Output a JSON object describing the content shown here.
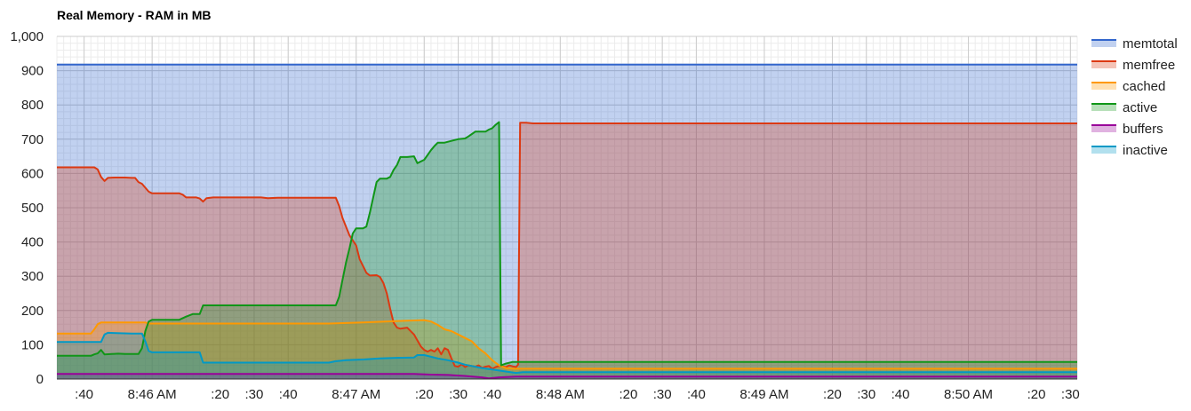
{
  "chart_data": {
    "type": "area",
    "title": "Real Memory - RAM in MB",
    "xlabel": "",
    "ylabel": "",
    "ylim": [
      0,
      1000
    ],
    "xlim": [
      30,
      330
    ],
    "x_unit": "seconds after 8:45:30",
    "y_ticks": [
      0,
      100,
      200,
      300,
      400,
      500,
      600,
      700,
      800,
      900,
      1000
    ],
    "y_tick_labels": [
      "0",
      "100",
      "200",
      "300",
      "400",
      "500",
      "600",
      "700",
      "800",
      "900",
      "1,000"
    ],
    "x_ticks": [
      {
        "t": 38,
        "label": ":40"
      },
      {
        "t": 58,
        "label": "8:46 AM"
      },
      {
        "t": 78,
        "label": ":20"
      },
      {
        "t": 88,
        "label": ":30"
      },
      {
        "t": 98,
        "label": ":40"
      },
      {
        "t": 118,
        "label": "8:47 AM"
      },
      {
        "t": 138,
        "label": ":20"
      },
      {
        "t": 148,
        "label": ":30"
      },
      {
        "t": 158,
        "label": ":40"
      },
      {
        "t": 178,
        "label": "8:48 AM"
      },
      {
        "t": 198,
        "label": ":20"
      },
      {
        "t": 208,
        "label": ":30"
      },
      {
        "t": 218,
        "label": ":40"
      },
      {
        "t": 238,
        "label": "8:49 AM"
      },
      {
        "t": 258,
        "label": ":20"
      },
      {
        "t": 268,
        "label": ":30"
      },
      {
        "t": 278,
        "label": ":40"
      },
      {
        "t": 298,
        "label": "8:50 AM"
      },
      {
        "t": 318,
        "label": ":20"
      },
      {
        "t": 328,
        "label": ":30"
      }
    ],
    "grid": true,
    "legend_position": "right",
    "series": [
      {
        "name": "memtotal",
        "color": "#3366cc",
        "points": [
          [
            30,
            918
          ],
          [
            330,
            918
          ]
        ]
      },
      {
        "name": "memfree",
        "color": "#dc3912",
        "points": [
          [
            30,
            618
          ],
          [
            41,
            618
          ],
          [
            42,
            612
          ],
          [
            43,
            590
          ],
          [
            44,
            578
          ],
          [
            45,
            587
          ],
          [
            47,
            588
          ],
          [
            50,
            588
          ],
          [
            52,
            587
          ],
          [
            53,
            587
          ],
          [
            54,
            575
          ],
          [
            55,
            570
          ],
          [
            57,
            547
          ],
          [
            58,
            542
          ],
          [
            59,
            542
          ],
          [
            63,
            542
          ],
          [
            66,
            542
          ],
          [
            67,
            538
          ],
          [
            68,
            530
          ],
          [
            71,
            530
          ],
          [
            72,
            527
          ],
          [
            73,
            518
          ],
          [
            74,
            528
          ],
          [
            76,
            530
          ],
          [
            85,
            530
          ],
          [
            90,
            530
          ],
          [
            92,
            528
          ],
          [
            95,
            529
          ],
          [
            100,
            529
          ],
          [
            110,
            529
          ],
          [
            112,
            529
          ],
          [
            113,
            505
          ],
          [
            114,
            470
          ],
          [
            116,
            420
          ],
          [
            118,
            390
          ],
          [
            119,
            350
          ],
          [
            120,
            330
          ],
          [
            121,
            310
          ],
          [
            122,
            302
          ],
          [
            124,
            303
          ],
          [
            125,
            298
          ],
          [
            126,
            280
          ],
          [
            127,
            250
          ],
          [
            128,
            205
          ],
          [
            129,
            165
          ],
          [
            130,
            150
          ],
          [
            131,
            147
          ],
          [
            133,
            150
          ],
          [
            135,
            130
          ],
          [
            137,
            95
          ],
          [
            138,
            85
          ],
          [
            139,
            80
          ],
          [
            140,
            85
          ],
          [
            141,
            80
          ],
          [
            142,
            90
          ],
          [
            143,
            72
          ],
          [
            144,
            90
          ],
          [
            145,
            85
          ],
          [
            146,
            60
          ],
          [
            147,
            38
          ],
          [
            148,
            36
          ],
          [
            149,
            43
          ],
          [
            150,
            35
          ],
          [
            151,
            40
          ],
          [
            152,
            38
          ],
          [
            153,
            36
          ],
          [
            154,
            40
          ],
          [
            155,
            33
          ],
          [
            156,
            36
          ],
          [
            157,
            38
          ],
          [
            158,
            30
          ],
          [
            159,
            35
          ],
          [
            160,
            38
          ],
          [
            161,
            37
          ],
          [
            162,
            35
          ],
          [
            163,
            40
          ],
          [
            164,
            37
          ],
          [
            165,
            35
          ],
          [
            165.6,
            42
          ],
          [
            166.2,
            748
          ],
          [
            168,
            748
          ],
          [
            170,
            746
          ],
          [
            330,
            746
          ]
        ]
      },
      {
        "name": "cached",
        "color": "#ff9900",
        "points": [
          [
            30,
            133
          ],
          [
            40,
            133
          ],
          [
            41,
            145
          ],
          [
            42,
            160
          ],
          [
            43,
            165
          ],
          [
            56,
            165
          ],
          [
            57,
            162
          ],
          [
            58,
            162
          ],
          [
            110,
            162
          ],
          [
            120,
            165
          ],
          [
            132,
            170
          ],
          [
            138,
            172
          ],
          [
            140,
            168
          ],
          [
            142,
            158
          ],
          [
            144,
            145
          ],
          [
            146,
            140
          ],
          [
            148,
            130
          ],
          [
            150,
            120
          ],
          [
            152,
            110
          ],
          [
            154,
            90
          ],
          [
            156,
            75
          ],
          [
            158,
            55
          ],
          [
            160,
            40
          ],
          [
            162,
            32
          ],
          [
            164,
            30
          ],
          [
            330,
            30
          ]
        ]
      },
      {
        "name": "active",
        "color": "#109618",
        "points": [
          [
            30,
            68
          ],
          [
            40,
            68
          ],
          [
            41,
            72
          ],
          [
            42,
            75
          ],
          [
            43,
            85
          ],
          [
            44,
            72
          ],
          [
            48,
            74
          ],
          [
            50,
            73
          ],
          [
            54,
            73
          ],
          [
            55,
            90
          ],
          [
            56,
            140
          ],
          [
            57,
            168
          ],
          [
            58,
            173
          ],
          [
            66,
            173
          ],
          [
            68,
            182
          ],
          [
            70,
            190
          ],
          [
            72,
            190
          ],
          [
            73,
            215
          ],
          [
            74,
            215
          ],
          [
            112,
            215
          ],
          [
            113,
            240
          ],
          [
            114,
            290
          ],
          [
            115,
            340
          ],
          [
            116,
            380
          ],
          [
            117,
            425
          ],
          [
            118,
            440
          ],
          [
            120,
            440
          ],
          [
            121,
            445
          ],
          [
            122,
            485
          ],
          [
            123,
            530
          ],
          [
            124,
            575
          ],
          [
            125,
            585
          ],
          [
            127,
            585
          ],
          [
            128,
            590
          ],
          [
            129,
            610
          ],
          [
            130,
            625
          ],
          [
            131,
            648
          ],
          [
            133,
            648
          ],
          [
            135,
            650
          ],
          [
            136,
            630
          ],
          [
            138,
            640
          ],
          [
            140,
            668
          ],
          [
            141,
            680
          ],
          [
            142,
            690
          ],
          [
            144,
            690
          ],
          [
            146,
            695
          ],
          [
            148,
            700
          ],
          [
            150,
            702
          ],
          [
            151,
            708
          ],
          [
            152,
            715
          ],
          [
            153,
            722
          ],
          [
            156,
            722
          ],
          [
            157,
            728
          ],
          [
            158,
            732
          ],
          [
            159,
            742
          ],
          [
            160,
            750
          ],
          [
            160.6,
            40
          ],
          [
            162,
            45
          ],
          [
            164,
            50
          ],
          [
            330,
            50
          ]
        ]
      },
      {
        "name": "buffers",
        "color": "#990099",
        "points": [
          [
            30,
            15
          ],
          [
            110,
            15
          ],
          [
            135,
            15
          ],
          [
            140,
            13
          ],
          [
            145,
            12
          ],
          [
            150,
            9
          ],
          [
            155,
            5
          ],
          [
            157,
            2
          ],
          [
            160,
            5
          ],
          [
            165,
            7
          ],
          [
            330,
            7
          ]
        ]
      },
      {
        "name": "inactive",
        "color": "#0099c6",
        "points": [
          [
            30,
            108
          ],
          [
            43,
            108
          ],
          [
            44,
            130
          ],
          [
            45,
            135
          ],
          [
            52,
            133
          ],
          [
            55,
            133
          ],
          [
            56,
            110
          ],
          [
            57,
            82
          ],
          [
            58,
            78
          ],
          [
            70,
            78
          ],
          [
            72,
            78
          ],
          [
            73,
            48
          ],
          [
            74,
            48
          ],
          [
            100,
            48
          ],
          [
            110,
            48
          ],
          [
            112,
            52
          ],
          [
            115,
            55
          ],
          [
            120,
            57
          ],
          [
            125,
            60
          ],
          [
            130,
            62
          ],
          [
            135,
            63
          ],
          [
            136,
            70
          ],
          [
            138,
            70
          ],
          [
            140,
            65
          ],
          [
            142,
            60
          ],
          [
            145,
            55
          ],
          [
            148,
            48
          ],
          [
            150,
            42
          ],
          [
            152,
            38
          ],
          [
            155,
            32
          ],
          [
            158,
            28
          ],
          [
            162,
            22
          ],
          [
            165,
            18
          ],
          [
            167,
            20
          ],
          [
            330,
            20
          ]
        ]
      }
    ]
  }
}
